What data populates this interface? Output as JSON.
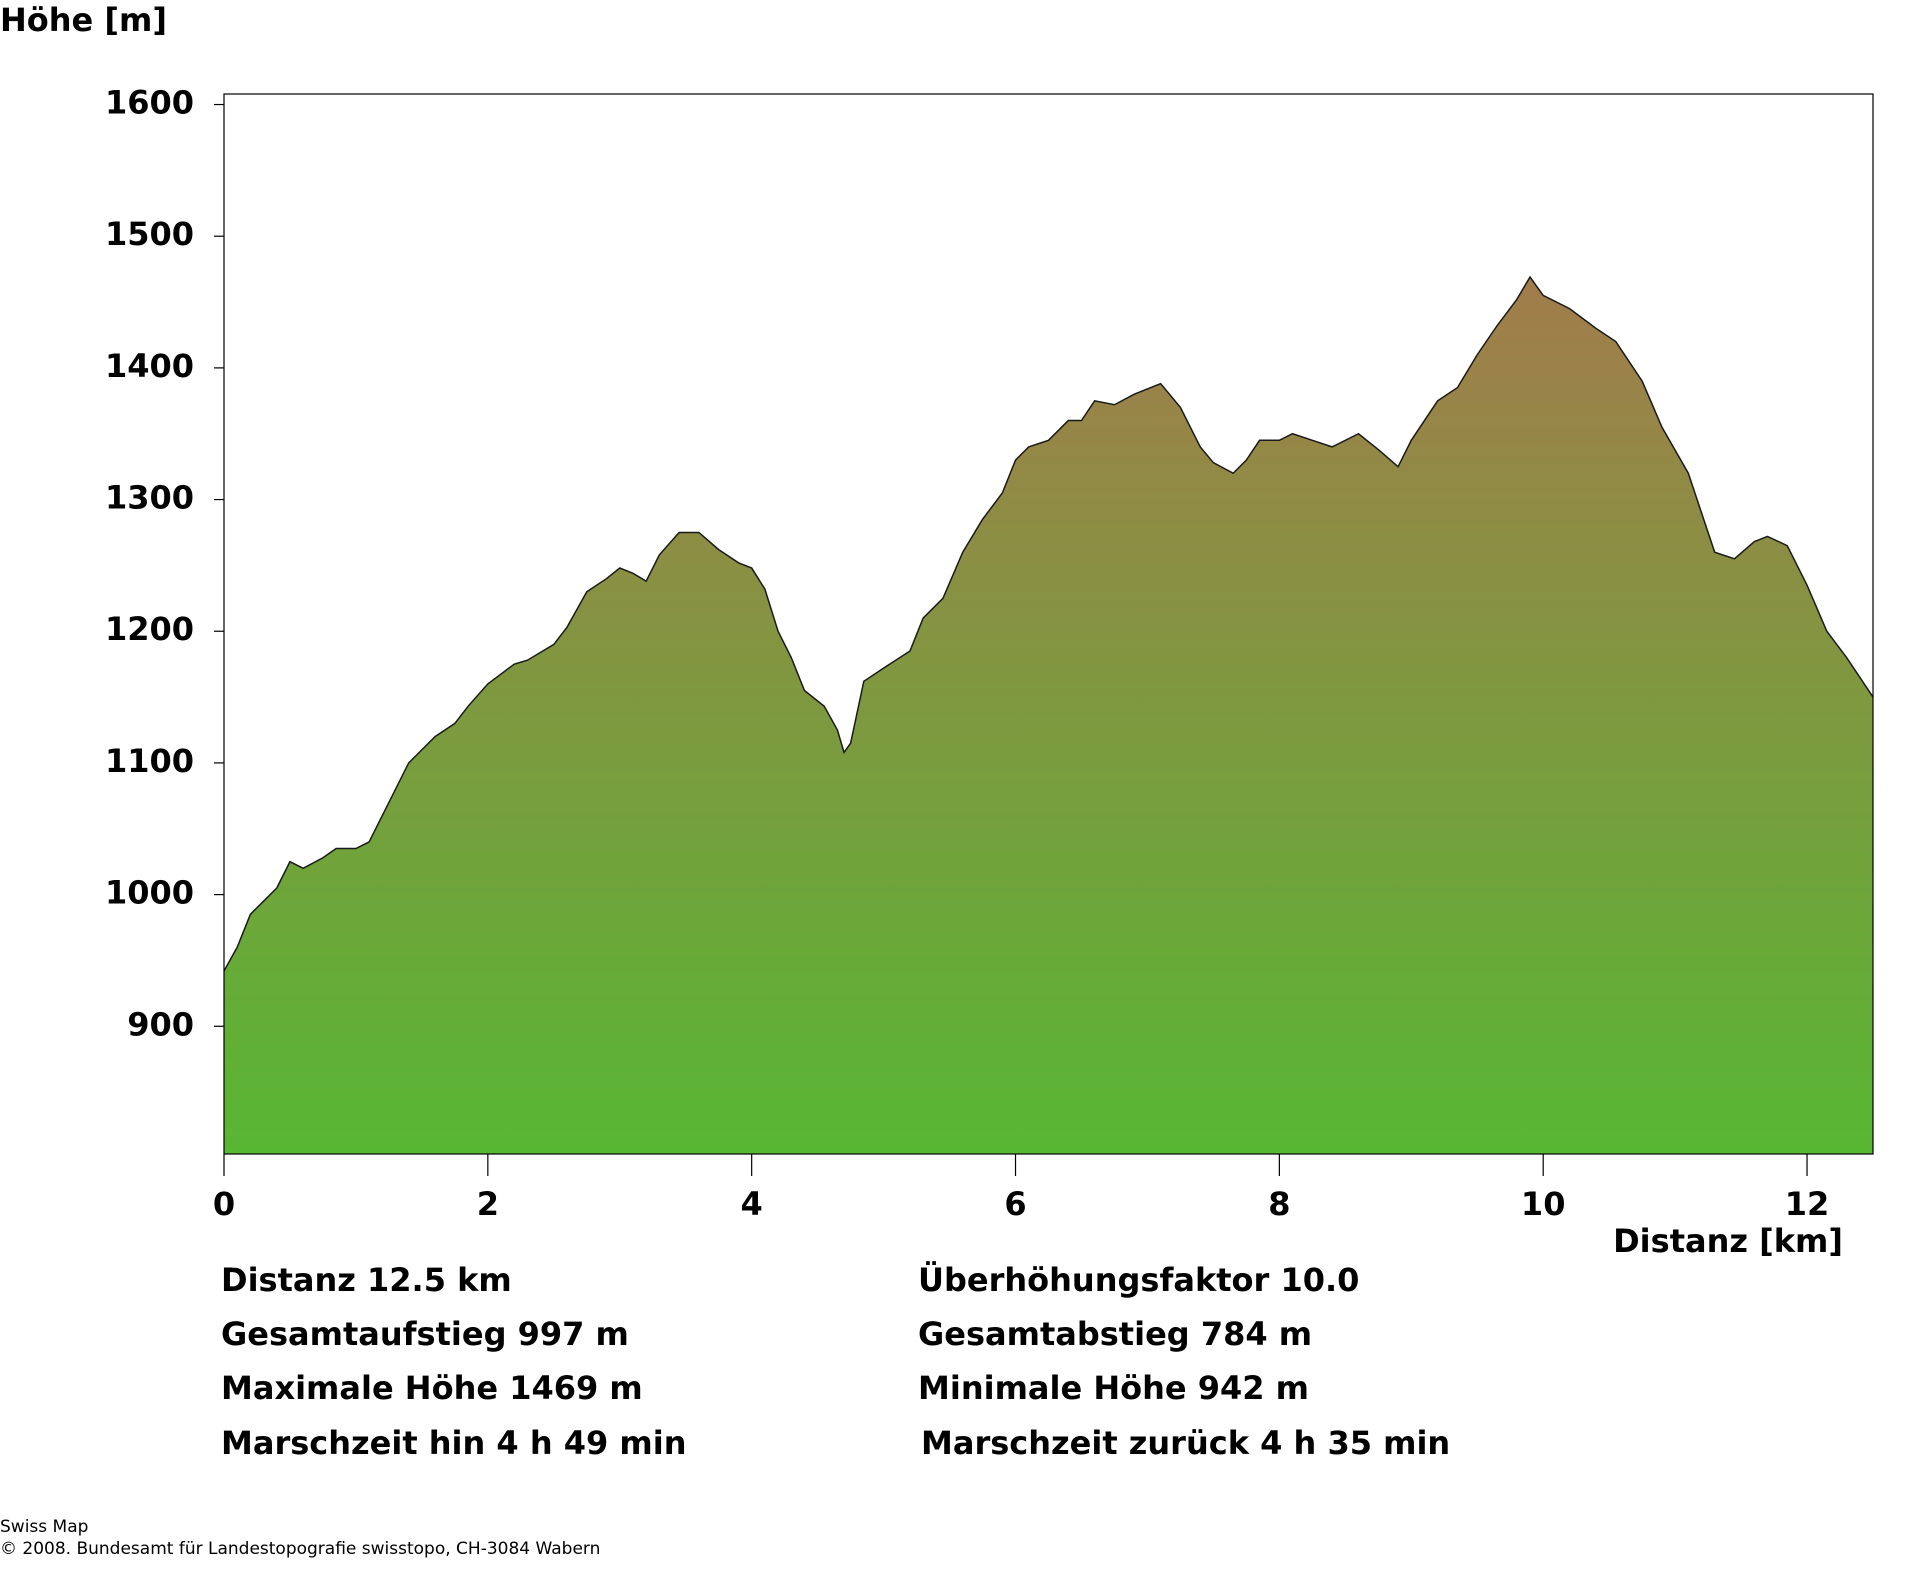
{
  "chart_data": {
    "type": "area",
    "ylabel": "Höhe [m]",
    "xlabel": "Distanz [km]",
    "x": [
      0,
      0.1,
      0.2,
      0.3,
      0.4,
      0.5,
      0.6,
      0.75,
      0.85,
      1.0,
      1.1,
      1.25,
      1.4,
      1.5,
      1.6,
      1.75,
      1.85,
      2.0,
      2.2,
      2.3,
      2.5,
      2.6,
      2.75,
      2.9,
      3.0,
      3.1,
      3.2,
      3.3,
      3.45,
      3.6,
      3.75,
      3.9,
      4.0,
      4.1,
      4.2,
      4.3,
      4.4,
      4.55,
      4.65,
      4.7,
      4.75,
      4.85,
      5.0,
      5.2,
      5.3,
      5.45,
      5.6,
      5.75,
      5.9,
      6.0,
      6.1,
      6.25,
      6.4,
      6.5,
      6.6,
      6.75,
      6.9,
      7.1,
      7.25,
      7.4,
      7.5,
      7.65,
      7.75,
      7.85,
      8.0,
      8.1,
      8.25,
      8.4,
      8.6,
      8.75,
      8.9,
      9.0,
      9.2,
      9.35,
      9.5,
      9.65,
      9.8,
      9.9,
      10.0,
      10.2,
      10.4,
      10.55,
      10.75,
      10.9,
      11.1,
      11.3,
      11.45,
      11.6,
      11.7,
      11.85,
      12.0,
      12.15,
      12.3,
      12.4,
      12.5
    ],
    "values": [
      942,
      960,
      985,
      995,
      1005,
      1025,
      1020,
      1028,
      1035,
      1035,
      1040,
      1070,
      1100,
      1110,
      1120,
      1130,
      1143,
      1160,
      1175,
      1178,
      1190,
      1203,
      1230,
      1240,
      1248,
      1244,
      1238,
      1258,
      1275,
      1275,
      1262,
      1252,
      1248,
      1232,
      1200,
      1180,
      1155,
      1143,
      1125,
      1108,
      1115,
      1162,
      1172,
      1185,
      1210,
      1225,
      1260,
      1285,
      1305,
      1330,
      1340,
      1345,
      1360,
      1360,
      1375,
      1372,
      1380,
      1388,
      1370,
      1340,
      1328,
      1320,
      1330,
      1345,
      1345,
      1350,
      1345,
      1340,
      1350,
      1338,
      1325,
      1345,
      1375,
      1385,
      1410,
      1432,
      1452,
      1469,
      1455,
      1445,
      1430,
      1420,
      1390,
      1355,
      1320,
      1260,
      1255,
      1268,
      1272,
      1265,
      1235,
      1200,
      1180,
      1165,
      1150
    ],
    "xlim": [
      0,
      12.5
    ],
    "ylim": [
      803,
      1608
    ],
    "xticks": [
      0,
      2,
      4,
      6,
      8,
      10,
      12
    ],
    "yticks": [
      900,
      1000,
      1100,
      1200,
      1300,
      1400,
      1500,
      1600
    ],
    "gradient": [
      "#a27c4b",
      "#58b733"
    ],
    "line_color": "#1a1a1a",
    "stats": [
      [
        "Distanz 12.5 km",
        "Überhöhungsfaktor 10.0"
      ],
      [
        "Gesamtaufstieg  997 m",
        "Gesamtabstieg  784 m"
      ],
      [
        "Maximale Höhe  1469 m",
        "Minimale Höhe  942 m"
      ],
      [
        "Marschzeit hin  4 h 49 min",
        "Marschzeit zurück  4 h 35 min"
      ]
    ],
    "footer": [
      "Swiss Map",
      "© 2008. Bundesamt für Landestopografie swisstopo, CH-3084 Wabern"
    ]
  }
}
